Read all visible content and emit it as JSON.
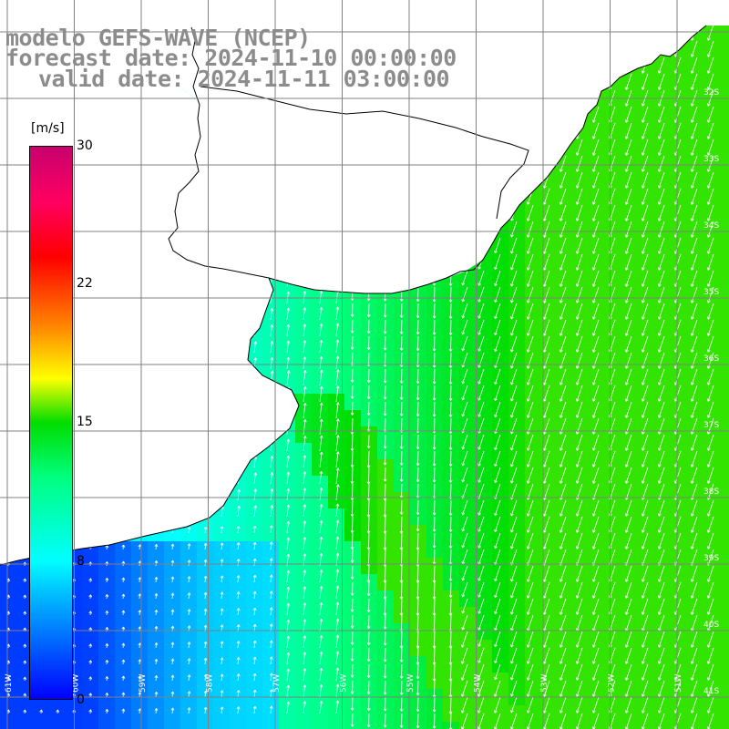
{
  "header": {
    "line1": "modelo GEFS-WAVE (NCEP)",
    "line2": "forecast date: 2024-11-10 00:00:00",
    "line3": "valid date: 2024-11-11 03:00:00"
  },
  "colorbar": {
    "unit": "[m/s]",
    "ticks": [
      "30",
      "22",
      "15",
      "8",
      "0"
    ],
    "tick_values": [
      30,
      22,
      15,
      8,
      0
    ],
    "range": [
      0,
      30
    ],
    "colors": [
      "#0000ff",
      "#00c8ff",
      "#00ffff",
      "#00ff80",
      "#00dd00",
      "#ffff00",
      "#ff8000",
      "#ff0000",
      "#ff0060",
      "#c8006e"
    ]
  },
  "axes": {
    "lat_labels": [
      "32S",
      "33S",
      "34S",
      "35S",
      "36S",
      "37S",
      "38S",
      "39S",
      "40S",
      "41S"
    ],
    "lon_labels": [
      "61W",
      "60W",
      "59W",
      "58W",
      "57W",
      "56W",
      "55W",
      "54W",
      "53W",
      "52W",
      "51W"
    ]
  },
  "colors": {
    "land": "#ffffff",
    "coast": "#000000",
    "grid": "#808080",
    "arrow": "#ffffff"
  }
}
